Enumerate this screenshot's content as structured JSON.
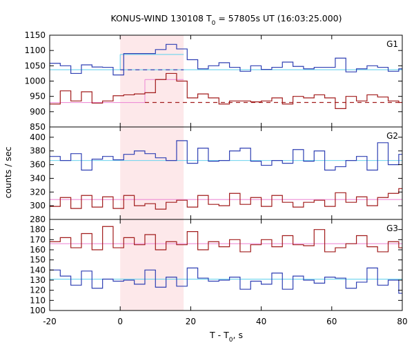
{
  "chart_data": {
    "type": "line",
    "title_main": "KONUS-WIND 130108 T",
    "title_sub": "0",
    "title_rest": " = 57805s UT (16:03:25.000)",
    "xlabel_main": "T - T",
    "xlabel_sub": "0",
    "xlabel_rest": ", s",
    "ylabel": "counts / sec",
    "xlim": [
      -20,
      80
    ],
    "x_ticks": [
      -20,
      0,
      20,
      40,
      60,
      80
    ],
    "highlight_interval": [
      0,
      18
    ],
    "bin_edges": [
      -20,
      -17,
      -14,
      -11,
      -8,
      -5,
      -2,
      1,
      4,
      7,
      10,
      13,
      16,
      19,
      22,
      25,
      28,
      31,
      34,
      37,
      40,
      43,
      46,
      49,
      52,
      55,
      58,
      61,
      64,
      67,
      70,
      73,
      76,
      79,
      80
    ],
    "panels": [
      {
        "label": "G1",
        "ylim": [
          850,
          1150
        ],
        "y_ticks": [
          850,
          900,
          950,
          1000,
          1050,
          1100,
          1150
        ],
        "series": [
          {
            "color": "#2e3fb3",
            "values": [
              1058,
              1050,
              1025,
              1053,
              1046,
              1045,
              1020,
              1090,
              1090,
              1090,
              1103,
              1120,
              1105,
              1070,
              1040,
              1050,
              1060,
              1045,
              1032,
              1050,
              1038,
              1045,
              1062,
              1048,
              1040,
              1045,
              1045,
              1075,
              1030,
              1040,
              1050,
              1045,
              1032,
              1040
            ],
            "background": [
              {
                "x": [
                  -20,
                  80
                ],
                "y": 1037
              }
            ],
            "interval_level": [
              {
                "x": [
                  0,
                  18
                ],
                "y": 1087
              }
            ],
            "dashed_level": [
              {
                "x": [
                  0,
                  18
                ],
                "y": 1037
              }
            ]
          },
          {
            "color": "#a11a1a",
            "values": [
              925,
              968,
              935,
              965,
              928,
              935,
              952,
              955,
              958,
              962,
              1005,
              1025,
              1000,
              945,
              958,
              945,
              925,
              935,
              935,
              932,
              935,
              945,
              925,
              950,
              945,
              955,
              945,
              910,
              950,
              935,
              955,
              948,
              935,
              930
            ],
            "background": [
              {
                "x": [
                  -20,
                  7
                ],
                "y": 930
              }
            ],
            "interval_level": [
              {
                "x": [
                  7,
                  18
                ],
                "y": 1005
              }
            ],
            "dashed_level": [
              {
                "x": [
                  7,
                  80
                ],
                "y": 930
              }
            ]
          }
        ]
      },
      {
        "label": "G2",
        "ylim": [
          280,
          415
        ],
        "y_ticks": [
          280,
          300,
          320,
          340,
          360,
          380,
          400
        ],
        "series": [
          {
            "color": "#2e3fb3",
            "values": [
              372,
              366,
              376,
              352,
              368,
              372,
              367,
              375,
              380,
              376,
              370,
              366,
              395,
              362,
              384,
              365,
              366,
              380,
              384,
              365,
              359,
              366,
              362,
              382,
              365,
              380,
              352,
              357,
              366,
              372,
              352,
              392,
              360,
              375
            ],
            "background": [
              {
                "x": [
                  -20,
                  80
                ],
                "y": 366
              }
            ]
          },
          {
            "color": "#a11a1a",
            "values": [
              299,
              312,
              296,
              315,
              298,
              313,
              296,
              315,
              300,
              303,
              295,
              305,
              308,
              298,
              315,
              302,
              300,
              318,
              302,
              312,
              299,
              315,
              305,
              298,
              305,
              308,
              299,
              319,
              305,
              313,
              300,
              312,
              318,
              325
            ],
            "background": [
              {
                "x": [
                  -20,
                  80
                ],
                "y": 309
              }
            ]
          }
        ]
      },
      {
        "label": "G3",
        "ylim": [
          100,
          190
        ],
        "y_ticks": [
          100,
          110,
          120,
          130,
          140,
          150,
          160,
          170,
          180
        ],
        "series": [
          {
            "color": "#a11a1a",
            "values": [
              168,
              172,
              162,
              176,
              160,
              183,
              162,
              172,
              165,
              175,
              160,
              168,
              165,
              178,
              160,
              168,
              163,
              170,
              158,
              165,
              170,
              163,
              174,
              165,
              164,
              180,
              158,
              162,
              166,
              174,
              163,
              158,
              168,
              162
            ],
            "background": [
              {
                "x": [
                  -20,
                  80
                ],
                "y": 166
              }
            ]
          },
          {
            "color": "#2e3fb3",
            "values": [
              140,
              134,
              125,
              139,
              122,
              131,
              129,
              130,
              126,
              140,
              123,
              133,
              124,
              142,
              132,
              129,
              130,
              133,
              121,
              129,
              126,
              137,
              121,
              134,
              130,
              127,
              133,
              132,
              122,
              128,
              142,
              125,
              130,
              117
            ],
            "background": [
              {
                "x": [
                  -20,
                  80
                ],
                "y": 131
              }
            ]
          }
        ]
      }
    ]
  },
  "colors": {
    "background_line_blue": "#6ad3ee",
    "background_line_red": "#ee8ed6",
    "highlight_fill": "#fde8ea"
  }
}
